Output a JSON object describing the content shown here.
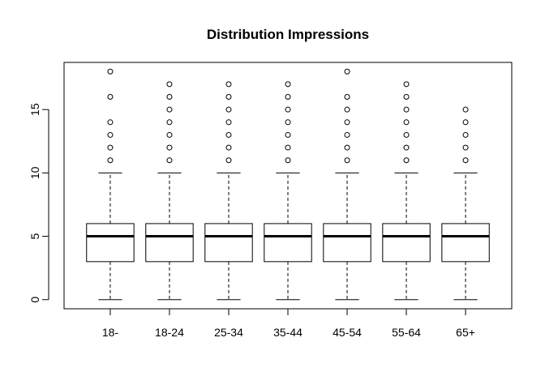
{
  "chart_data": {
    "type": "box",
    "title": "Distribution Impressions",
    "xlabel": "",
    "ylabel": "",
    "categories": [
      "18-",
      "18-24",
      "25-34",
      "35-44",
      "45-54",
      "55-64",
      "65+"
    ],
    "ylim": [
      -0.72,
      18.72
    ],
    "yticks": [
      0,
      5,
      10,
      15
    ],
    "boxes": [
      {
        "category": "18-",
        "whisker_low": 0,
        "q1": 3,
        "median": 5,
        "q3": 6,
        "whisker_high": 10,
        "outliers": [
          11,
          12,
          13,
          14,
          16,
          18
        ]
      },
      {
        "category": "18-24",
        "whisker_low": 0,
        "q1": 3,
        "median": 5,
        "q3": 6,
        "whisker_high": 10,
        "outliers": [
          11,
          12,
          13,
          14,
          15,
          16,
          17
        ]
      },
      {
        "category": "25-34",
        "whisker_low": 0,
        "q1": 3,
        "median": 5,
        "q3": 6,
        "whisker_high": 10,
        "outliers": [
          11,
          12,
          13,
          14,
          15,
          16,
          17
        ]
      },
      {
        "category": "35-44",
        "whisker_low": 0,
        "q1": 3,
        "median": 5,
        "q3": 6,
        "whisker_high": 10,
        "outliers": [
          11,
          12,
          13,
          14,
          15,
          16,
          17
        ]
      },
      {
        "category": "45-54",
        "whisker_low": 0,
        "q1": 3,
        "median": 5,
        "q3": 6,
        "whisker_high": 10,
        "outliers": [
          11,
          12,
          13,
          14,
          15,
          16,
          18
        ]
      },
      {
        "category": "55-64",
        "whisker_low": 0,
        "q1": 3,
        "median": 5,
        "q3": 6,
        "whisker_high": 10,
        "outliers": [
          11,
          12,
          13,
          14,
          15,
          16,
          17
        ]
      },
      {
        "category": "65+",
        "whisker_low": 0,
        "q1": 3,
        "median": 5,
        "q3": 6,
        "whisker_high": 10,
        "outliers": [
          11,
          12,
          13,
          14,
          15
        ]
      }
    ],
    "grid": false,
    "legend": "none",
    "colors": {
      "stroke": "#000000",
      "box_fill": "#ffffff",
      "background": "#ffffff"
    }
  }
}
